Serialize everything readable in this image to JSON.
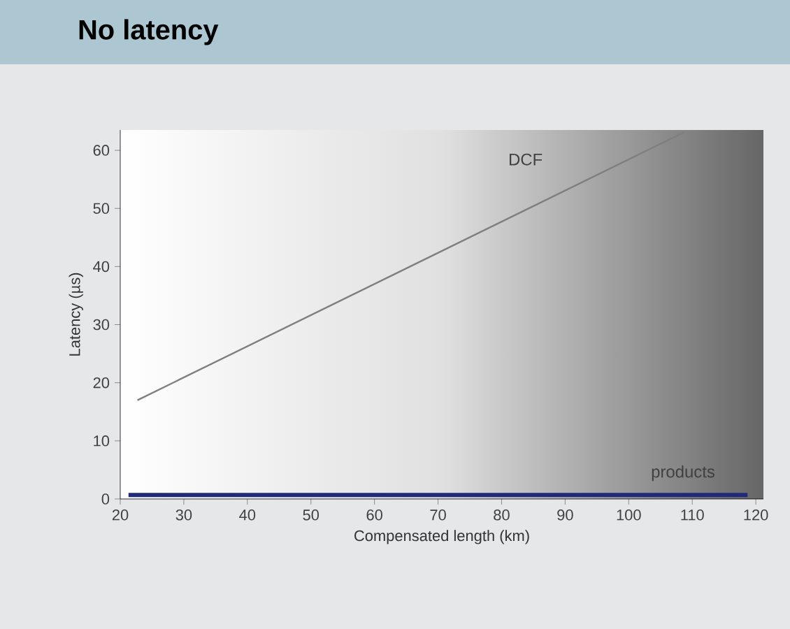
{
  "chart_data": {
    "type": "line",
    "title": "No latency",
    "xlabel": "Compensated length (km)",
    "ylabel": "Latency (µs)",
    "xlim": [
      20,
      121.2
    ],
    "ylim": [
      0,
      63.5
    ],
    "xticks": [
      20,
      30,
      40,
      50,
      60,
      70,
      80,
      90,
      100,
      110,
      120
    ],
    "yticks": [
      0,
      10,
      20,
      30,
      40,
      50,
      60
    ],
    "grid": false,
    "legend": false,
    "marker": "none",
    "line_style": "solid",
    "series": [
      {
        "name": "DCF",
        "color": "#7f7f7f",
        "x": [
          22.7,
          108.7
        ],
        "values": [
          17,
          63.1
        ]
      },
      {
        "name": "products",
        "color": "#1f2a78",
        "x": [
          21.3,
          118.7
        ],
        "values": [
          0.7,
          0.7
        ]
      }
    ]
  }
}
